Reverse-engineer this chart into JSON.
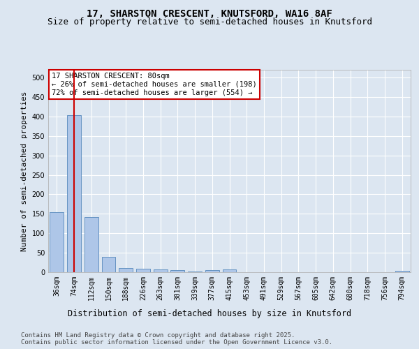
{
  "title_line1": "17, SHARSTON CRESCENT, KNUTSFORD, WA16 8AF",
  "title_line2": "Size of property relative to semi-detached houses in Knutsford",
  "xlabel": "Distribution of semi-detached houses by size in Knutsford",
  "ylabel": "Number of semi-detached properties",
  "categories": [
    "36sqm",
    "74sqm",
    "112sqm",
    "150sqm",
    "188sqm",
    "226sqm",
    "263sqm",
    "301sqm",
    "339sqm",
    "377sqm",
    "415sqm",
    "453sqm",
    "491sqm",
    "529sqm",
    "567sqm",
    "605sqm",
    "642sqm",
    "680sqm",
    "718sqm",
    "756sqm",
    "794sqm"
  ],
  "values": [
    155,
    403,
    141,
    40,
    11,
    9,
    7,
    5,
    1,
    5,
    7,
    0,
    0,
    0,
    0,
    0,
    0,
    0,
    0,
    0,
    4
  ],
  "bar_color": "#aec6e8",
  "bar_edge_color": "#5588bb",
  "highlight_bar_index": 1,
  "highlight_line_color": "#cc0000",
  "annotation_title": "17 SHARSTON CRESCENT: 80sqm",
  "annotation_line1": "← 26% of semi-detached houses are smaller (198)",
  "annotation_line2": "72% of semi-detached houses are larger (554) →",
  "annotation_box_color": "#cc0000",
  "footer_line1": "Contains HM Land Registry data © Crown copyright and database right 2025.",
  "footer_line2": "Contains public sector information licensed under the Open Government Licence v3.0.",
  "ylim": [
    0,
    520
  ],
  "yticks": [
    0,
    50,
    100,
    150,
    200,
    250,
    300,
    350,
    400,
    450,
    500
  ],
  "background_color": "#dce6f1",
  "plot_bg_color": "#dce6f1",
  "grid_color": "#ffffff",
  "title_fontsize": 10,
  "subtitle_fontsize": 9,
  "axis_label_fontsize": 8,
  "tick_fontsize": 7,
  "annotation_fontsize": 7.5,
  "footer_fontsize": 6.5
}
